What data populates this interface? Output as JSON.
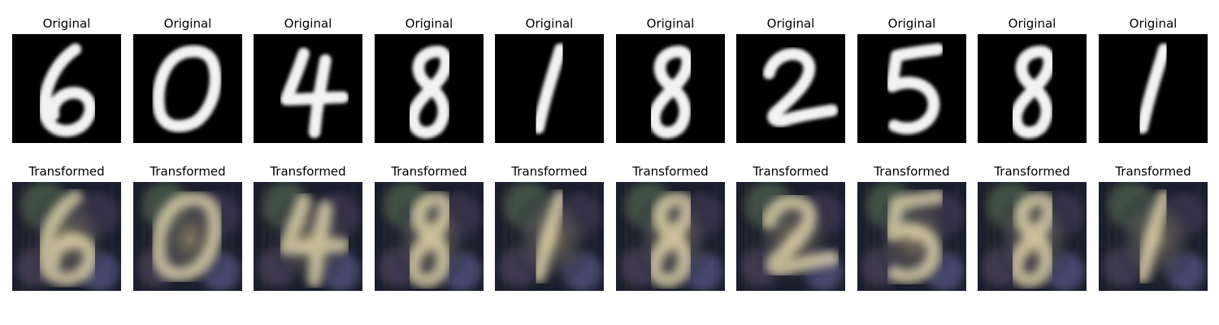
{
  "rows": [
    {
      "title": "Original",
      "kind": "original",
      "digits": [
        "6",
        "0",
        "4",
        "8",
        "1",
        "8",
        "2",
        "5",
        "8",
        "1"
      ]
    },
    {
      "title": "Transformed",
      "kind": "transformed",
      "digits": [
        "6",
        "0",
        "4",
        "8",
        "1",
        "8",
        "2",
        "5",
        "8",
        "1"
      ]
    }
  ],
  "colors": {
    "original_background": "#000000",
    "original_stroke": "#f2f2f2",
    "transformed_background": "#1b1e2c",
    "transformed_stroke": "#e9dcb0"
  }
}
